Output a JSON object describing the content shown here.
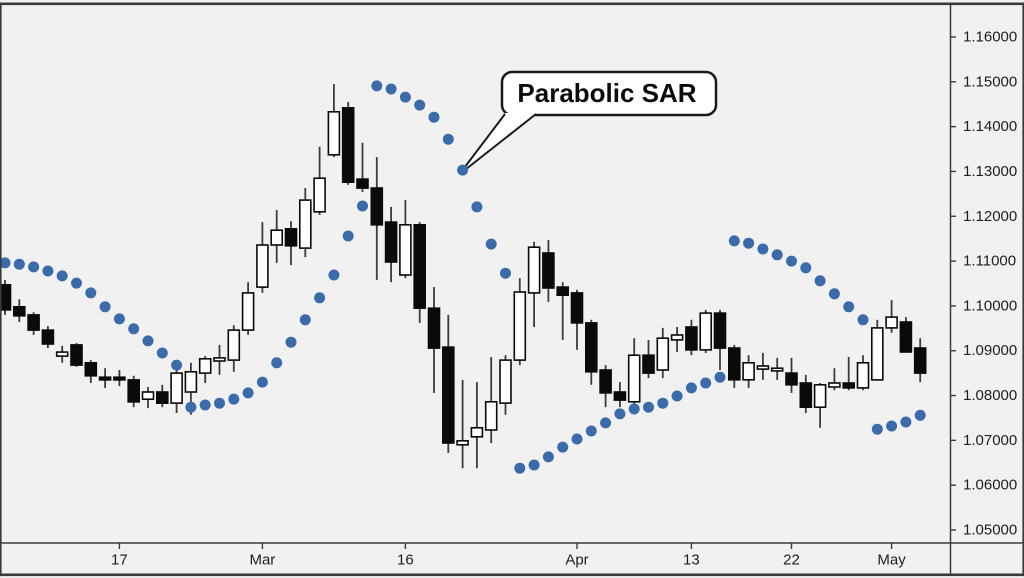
{
  "chart_data": {
    "type": "candlestick",
    "indicator": "Parabolic SAR",
    "annotation": {
      "text": "Parabolic SAR",
      "target_index": 32
    },
    "y_axis": {
      "min": 1.05,
      "max": 1.16,
      "tick_labels": [
        "1.16000",
        "1.15000",
        "1.14000",
        "1.13000",
        "1.12000",
        "1.11000",
        "1.10000",
        "1.09000",
        "1.08000",
        "1.07000",
        "1.06000",
        "1.05000"
      ]
    },
    "x_axis": {
      "tick_labels": [
        {
          "label": "17",
          "index": 8
        },
        {
          "label": "Mar",
          "index": 18
        },
        {
          "label": "16",
          "index": 28
        },
        {
          "label": "Apr",
          "index": 40
        },
        {
          "label": "13",
          "index": 48
        },
        {
          "label": "22",
          "index": 55
        },
        {
          "label": "May",
          "index": 62
        }
      ]
    },
    "colors": {
      "sar_dot": "#3b6ca9",
      "bull_fill": "#fefefe",
      "bear_fill": "#0a0a0a",
      "candle_outline": "#0a0a0a",
      "wick": "#3c3c3c",
      "background": "#f1f1f1",
      "frame": "#3a3a3a"
    },
    "candles": [
      {
        "o": 1.1047,
        "h": 1.1058,
        "l": 1.098,
        "c": 1.0991,
        "bull": 0
      },
      {
        "o": 1.0998,
        "h": 1.1015,
        "l": 1.0964,
        "c": 1.0978,
        "bull": 0
      },
      {
        "o": 1.098,
        "h": 1.0986,
        "l": 1.0935,
        "c": 1.0946,
        "bull": 0
      },
      {
        "o": 1.0946,
        "h": 1.0955,
        "l": 1.0906,
        "c": 1.0915,
        "bull": 0
      },
      {
        "o": 1.0888,
        "h": 1.0911,
        "l": 1.0873,
        "c": 1.0897,
        "bull": 1
      },
      {
        "o": 1.0913,
        "h": 1.0917,
        "l": 1.0864,
        "c": 1.0868,
        "bull": 0
      },
      {
        "o": 1.0873,
        "h": 1.0879,
        "l": 1.0828,
        "c": 1.0844,
        "bull": 0
      },
      {
        "o": 1.0841,
        "h": 1.0861,
        "l": 1.0817,
        "c": 1.0835,
        "bull": 0
      },
      {
        "o": 1.0841,
        "h": 1.0857,
        "l": 1.0821,
        "c": 1.0835,
        "bull": 0
      },
      {
        "o": 1.0835,
        "h": 1.0844,
        "l": 1.0774,
        "c": 1.0786,
        "bull": 0
      },
      {
        "o": 1.0792,
        "h": 1.0819,
        "l": 1.0772,
        "c": 1.0808,
        "bull": 1
      },
      {
        "o": 1.0808,
        "h": 1.0824,
        "l": 1.0774,
        "c": 1.0783,
        "bull": 0
      },
      {
        "o": 1.0783,
        "h": 1.0868,
        "l": 1.0761,
        "c": 1.085,
        "bull": 1
      },
      {
        "o": 1.0808,
        "h": 1.0873,
        "l": 1.0757,
        "c": 1.0853,
        "bull": 1
      },
      {
        "o": 1.085,
        "h": 1.0888,
        "l": 1.0828,
        "c": 1.0882,
        "bull": 1
      },
      {
        "o": 1.0877,
        "h": 1.0913,
        "l": 1.0846,
        "c": 1.0884,
        "bull": 1
      },
      {
        "o": 1.0879,
        "h": 1.0957,
        "l": 1.0853,
        "c": 1.0946,
        "bull": 1
      },
      {
        "o": 1.0946,
        "h": 1.1053,
        "l": 1.0935,
        "c": 1.1029,
        "bull": 1
      },
      {
        "o": 1.1042,
        "h": 1.1187,
        "l": 1.1029,
        "c": 1.1136,
        "bull": 1
      },
      {
        "o": 1.1136,
        "h": 1.1214,
        "l": 1.1096,
        "c": 1.1169,
        "bull": 1
      },
      {
        "o": 1.1172,
        "h": 1.1189,
        "l": 1.1091,
        "c": 1.1134,
        "bull": 0
      },
      {
        "o": 1.1129,
        "h": 1.1263,
        "l": 1.1109,
        "c": 1.1236,
        "bull": 1
      },
      {
        "o": 1.121,
        "h": 1.1355,
        "l": 1.1203,
        "c": 1.1285,
        "bull": 1
      },
      {
        "o": 1.1337,
        "h": 1.1495,
        "l": 1.1332,
        "c": 1.1433,
        "bull": 1
      },
      {
        "o": 1.1442,
        "h": 1.1455,
        "l": 1.127,
        "c": 1.1276,
        "bull": 0
      },
      {
        "o": 1.1283,
        "h": 1.1364,
        "l": 1.1254,
        "c": 1.1263,
        "bull": 0
      },
      {
        "o": 1.1263,
        "h": 1.1332,
        "l": 1.1058,
        "c": 1.1181,
        "bull": 0
      },
      {
        "o": 1.1187,
        "h": 1.1221,
        "l": 1.1053,
        "c": 1.1098,
        "bull": 0
      },
      {
        "o": 1.1069,
        "h": 1.1236,
        "l": 1.1062,
        "c": 1.1181,
        "bull": 1
      },
      {
        "o": 1.1181,
        "h": 1.1187,
        "l": 1.0962,
        "c": 1.0995,
        "bull": 0
      },
      {
        "o": 1.0995,
        "h": 1.1042,
        "l": 1.0806,
        "c": 1.0906,
        "bull": 0
      },
      {
        "o": 1.0908,
        "h": 1.098,
        "l": 1.0672,
        "c": 1.0694,
        "bull": 0
      },
      {
        "o": 1.069,
        "h": 1.0835,
        "l": 1.0638,
        "c": 1.0699,
        "bull": 1
      },
      {
        "o": 1.0708,
        "h": 1.083,
        "l": 1.0638,
        "c": 1.0728,
        "bull": 1
      },
      {
        "o": 1.0723,
        "h": 1.0886,
        "l": 1.0694,
        "c": 1.0786,
        "bull": 1
      },
      {
        "o": 1.0783,
        "h": 1.089,
        "l": 1.0757,
        "c": 1.0879,
        "bull": 1
      },
      {
        "o": 1.0879,
        "h": 1.1062,
        "l": 1.0868,
        "c": 1.1031,
        "bull": 1
      },
      {
        "o": 1.1029,
        "h": 1.1143,
        "l": 1.0953,
        "c": 1.1131,
        "bull": 1
      },
      {
        "o": 1.1118,
        "h": 1.1147,
        "l": 1.1009,
        "c": 1.104,
        "bull": 0
      },
      {
        "o": 1.1042,
        "h": 1.1053,
        "l": 1.0924,
        "c": 1.1024,
        "bull": 0
      },
      {
        "o": 1.1029,
        "h": 1.1036,
        "l": 1.0902,
        "c": 1.0962,
        "bull": 0
      },
      {
        "o": 1.0962,
        "h": 1.0969,
        "l": 1.0824,
        "c": 1.0853,
        "bull": 0
      },
      {
        "o": 1.0857,
        "h": 1.0868,
        "l": 1.0774,
        "c": 1.0806,
        "bull": 0
      },
      {
        "o": 1.0808,
        "h": 1.083,
        "l": 1.0774,
        "c": 1.079,
        "bull": 0
      },
      {
        "o": 1.0786,
        "h": 1.0928,
        "l": 1.0777,
        "c": 1.089,
        "bull": 1
      },
      {
        "o": 1.089,
        "h": 1.0924,
        "l": 1.0839,
        "c": 1.085,
        "bull": 0
      },
      {
        "o": 1.0857,
        "h": 1.0951,
        "l": 1.0839,
        "c": 1.0928,
        "bull": 1
      },
      {
        "o": 1.0924,
        "h": 1.0953,
        "l": 1.0897,
        "c": 1.0935,
        "bull": 1
      },
      {
        "o": 1.0953,
        "h": 1.0969,
        "l": 1.089,
        "c": 1.0902,
        "bull": 0
      },
      {
        "o": 1.0902,
        "h": 1.0991,
        "l": 1.0895,
        "c": 1.0984,
        "bull": 1
      },
      {
        "o": 1.0984,
        "h": 1.0991,
        "l": 1.0857,
        "c": 1.0906,
        "bull": 0
      },
      {
        "o": 1.0906,
        "h": 1.0913,
        "l": 1.0817,
        "c": 1.0835,
        "bull": 0
      },
      {
        "o": 1.0835,
        "h": 1.089,
        "l": 1.0817,
        "c": 1.0873,
        "bull": 1
      },
      {
        "o": 1.0859,
        "h": 1.0895,
        "l": 1.0835,
        "c": 1.0866,
        "bull": 1
      },
      {
        "o": 1.0855,
        "h": 1.0884,
        "l": 1.0835,
        "c": 1.0861,
        "bull": 1
      },
      {
        "o": 1.085,
        "h": 1.0884,
        "l": 1.0806,
        "c": 1.0824,
        "bull": 0
      },
      {
        "o": 1.0828,
        "h": 1.0846,
        "l": 1.0761,
        "c": 1.0774,
        "bull": 0
      },
      {
        "o": 1.0774,
        "h": 1.0828,
        "l": 1.0728,
        "c": 1.0824,
        "bull": 1
      },
      {
        "o": 1.0819,
        "h": 1.0861,
        "l": 1.0812,
        "c": 1.0828,
        "bull": 1
      },
      {
        "o": 1.0828,
        "h": 1.0886,
        "l": 1.0812,
        "c": 1.0817,
        "bull": 0
      },
      {
        "o": 1.0817,
        "h": 1.089,
        "l": 1.0812,
        "c": 1.0873,
        "bull": 1
      },
      {
        "o": 1.0835,
        "h": 1.0969,
        "l": 1.0835,
        "c": 1.0951,
        "bull": 1
      },
      {
        "o": 1.0951,
        "h": 1.1013,
        "l": 1.094,
        "c": 1.0975,
        "bull": 1
      },
      {
        "o": 1.0964,
        "h": 1.0975,
        "l": 1.0897,
        "c": 1.0897,
        "bull": 0
      },
      {
        "o": 1.0906,
        "h": 1.0928,
        "l": 1.083,
        "c": 1.085,
        "bull": 0
      }
    ],
    "sar": [
      1.1096,
      1.1093,
      1.1087,
      1.1078,
      1.1067,
      1.1051,
      1.1029,
      1.0998,
      1.0971,
      1.0949,
      1.0922,
      1.0895,
      1.0868,
      1.0774,
      1.0779,
      1.0783,
      1.0792,
      1.0806,
      1.083,
      1.0873,
      1.0919,
      1.0969,
      1.1018,
      1.1069,
      1.1156,
      1.1223,
      1.1491,
      1.1484,
      1.1466,
      1.1448,
      1.1421,
      1.1372,
      1.1303,
      1.1221,
      1.1138,
      1.1073,
      1.0638,
      1.0645,
      1.0663,
      1.0685,
      1.0703,
      1.0721,
      1.0739,
      1.0759,
      1.077,
      1.0774,
      1.0783,
      1.0799,
      1.0817,
      1.0828,
      1.0841,
      1.1145,
      1.114,
      1.1127,
      1.1114,
      1.11,
      1.1085,
      1.1056,
      1.1027,
      1.0998,
      1.0969,
      1.0725,
      1.0732,
      1.0741,
      1.0756
    ]
  }
}
